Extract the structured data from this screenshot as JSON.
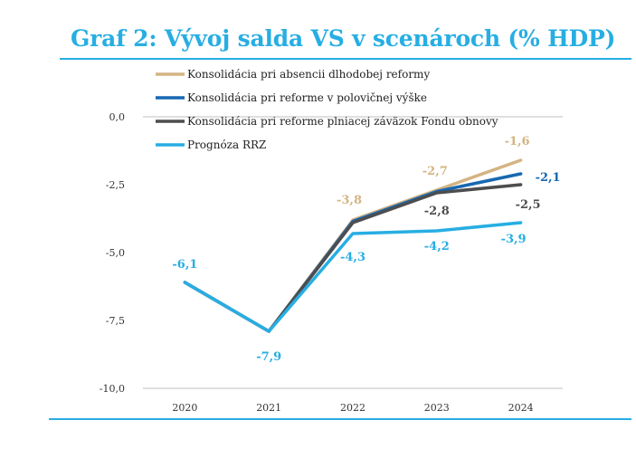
{
  "title": "Graf 2: Vývoj salda VS v scenároch (% HDP)",
  "chart_data": {
    "type": "line",
    "title": "Graf 2: Vývoj salda VS v scenároch (% HDP)",
    "xlabel": "",
    "ylabel": "",
    "categories": [
      "2020",
      "2021",
      "2022",
      "2023",
      "2024"
    ],
    "ylim": [
      -10.0,
      0.0
    ],
    "yticks": [
      0.0,
      -2.5,
      -5.0,
      -7.5,
      -10.0
    ],
    "ytick_labels": [
      "0,0",
      "-2,5",
      "-5,0",
      "-7,5",
      "-10,0"
    ],
    "grid": false,
    "legend_position": "top",
    "series": [
      {
        "name": "Konsolidácia pri absencii dlhodobej reformy",
        "color": "#d4b483",
        "values": [
          -6.1,
          -7.9,
          -3.8,
          -2.7,
          -1.6
        ],
        "labels": [
          "",
          "",
          "-3,8",
          "-2,7",
          "-1,6"
        ]
      },
      {
        "name": "Konsolidácia pri reforme v polovičnej výške",
        "color": "#1768b0",
        "values": [
          -6.1,
          -7.9,
          -3.85,
          -2.75,
          -2.1
        ],
        "labels": [
          "",
          "",
          "",
          "",
          "-2,1"
        ]
      },
      {
        "name": "Konsolidácia pri reforme plniacej záväzok Fondu obnovy",
        "color": "#4d4d4f",
        "values": [
          -6.1,
          -7.9,
          -3.9,
          -2.8,
          -2.5
        ],
        "labels": [
          "",
          "",
          "",
          "-2,8",
          "-2,5"
        ]
      },
      {
        "name": "Prognóza RRZ",
        "color": "#27aee3",
        "values": [
          -6.1,
          -7.9,
          -4.3,
          -4.2,
          -3.9
        ],
        "labels": [
          "-6,1",
          "-7,9",
          "-4,3",
          "-4,2",
          "-3,9"
        ]
      }
    ]
  }
}
